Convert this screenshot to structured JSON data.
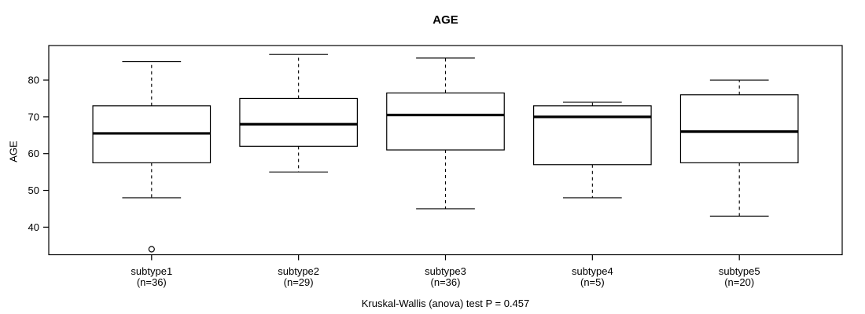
{
  "chart_data": {
    "type": "boxplot",
    "title": "AGE",
    "ylabel": "AGE",
    "ylim": [
      32.5,
      89.4
    ],
    "yticks": [
      40,
      50,
      60,
      70,
      80
    ],
    "grid": false,
    "annotation": "Kruskal-Wallis (anova) test P = 0.457",
    "p_value": "0.457",
    "colors": {
      "line": "#000000",
      "box_fill": "#ffffff",
      "background": "#ffffff"
    },
    "groups": [
      {
        "label": "subtype1",
        "n_label": "(n=36)",
        "n": 36,
        "whisker_low": 48,
        "q1": 57.5,
        "median": 65.5,
        "q3": 73,
        "whisker_high": 85,
        "outliers": [
          34
        ]
      },
      {
        "label": "subtype2",
        "n_label": "(n=29)",
        "n": 29,
        "whisker_low": 55,
        "q1": 62,
        "median": 68,
        "q3": 75,
        "whisker_high": 87,
        "outliers": []
      },
      {
        "label": "subtype3",
        "n_label": "(n=36)",
        "n": 36,
        "whisker_low": 45,
        "q1": 61,
        "median": 70.5,
        "q3": 76.5,
        "whisker_high": 86,
        "outliers": []
      },
      {
        "label": "subtype4",
        "n_label": "(n=5)",
        "n": 5,
        "whisker_low": 48,
        "q1": 57,
        "median": 70,
        "q3": 73,
        "whisker_high": 74,
        "outliers": []
      },
      {
        "label": "subtype5",
        "n_label": "(n=20)",
        "n": 20,
        "whisker_low": 43,
        "q1": 57.5,
        "median": 66,
        "q3": 76,
        "whisker_high": 80,
        "outliers": []
      }
    ]
  }
}
